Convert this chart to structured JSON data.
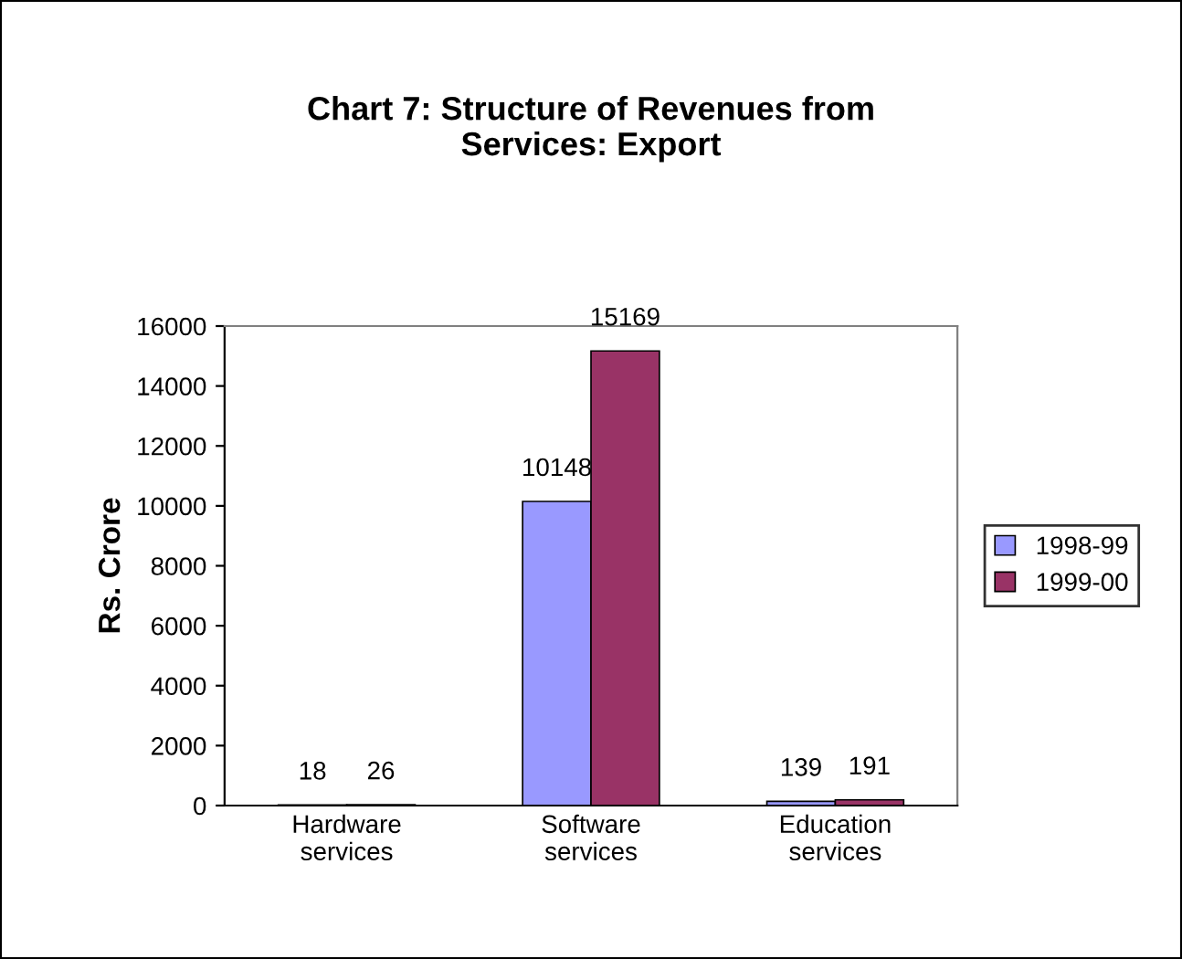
{
  "chart_data": {
    "type": "bar",
    "title": "Chart 7: Structure of Revenues from\nServices: Export",
    "ylabel": "Rs. Crore",
    "categories": [
      "Hardware\nservices",
      "Software\nservices",
      "Education\nservices"
    ],
    "series": [
      {
        "name": "1998-99",
        "color": "#9999ff",
        "values": [
          18,
          10148,
          139
        ]
      },
      {
        "name": "1999-00",
        "color": "#993366",
        "values": [
          26,
          15169,
          191
        ]
      }
    ],
    "ylim": [
      0,
      16000
    ],
    "yticks": [
      0,
      2000,
      4000,
      6000,
      8000,
      10000,
      12000,
      14000,
      16000
    ],
    "data_labels": true,
    "legend": "right",
    "grid": false
  }
}
